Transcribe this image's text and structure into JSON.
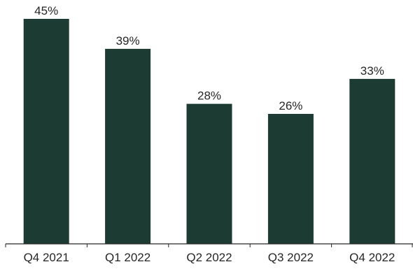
{
  "chart_data": {
    "type": "bar",
    "categories": [
      "Q4 2021",
      "Q1 2022",
      "Q2 2022",
      "Q3 2022",
      "Q4 2022"
    ],
    "values": [
      45,
      39,
      28,
      26,
      33
    ],
    "data_labels": [
      "45%",
      "39%",
      "28%",
      "26%",
      "33%"
    ],
    "ylim": [
      0,
      45
    ],
    "grid": false,
    "legend": "none",
    "bar_color": "#1c3b32",
    "axis_color": "#262626"
  }
}
